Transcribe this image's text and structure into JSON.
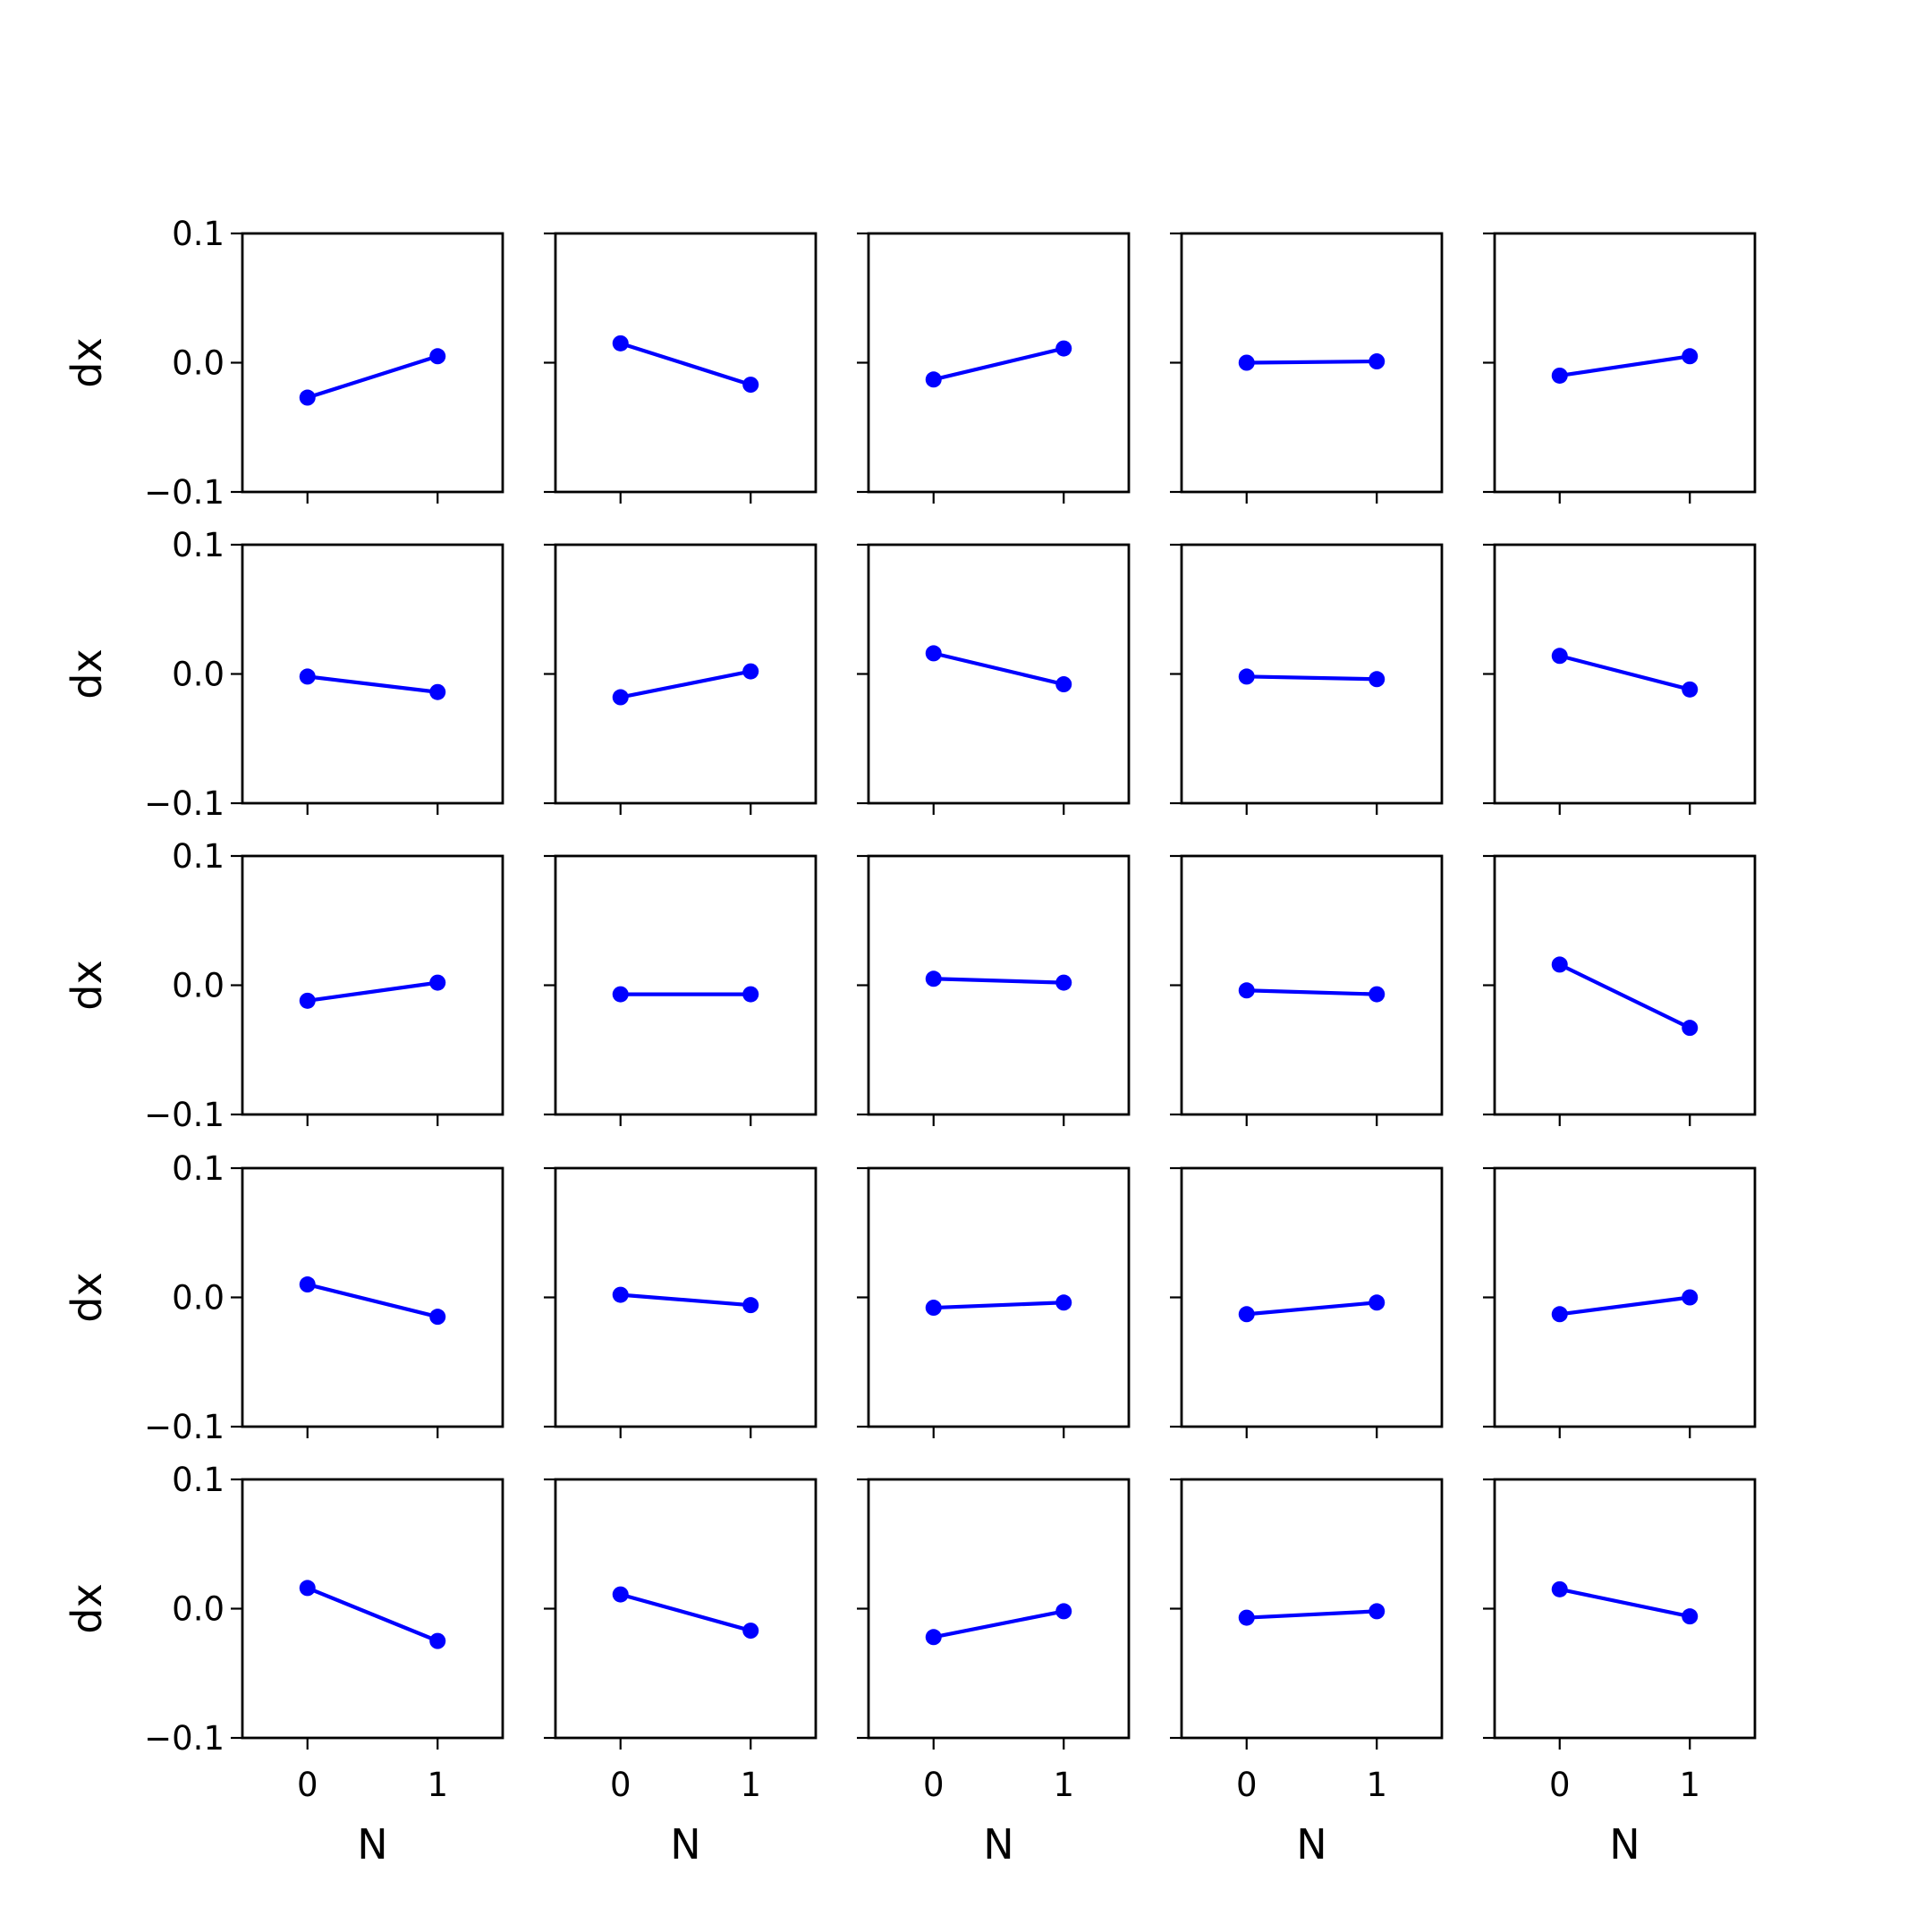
{
  "chart_data": {
    "type": "line",
    "layout": {
      "rows": 5,
      "cols": 5
    },
    "xlabel": "N",
    "ylabel": "dx",
    "xlim": [
      -0.5,
      1.5
    ],
    "ylim": [
      -0.1,
      0.1
    ],
    "xticks": [
      0,
      1
    ],
    "yticks": [
      -0.1,
      0.0,
      0.1
    ],
    "xtick_labels": [
      "0",
      "1"
    ],
    "ytick_labels": [
      "−0.1",
      "0.0",
      "0.1"
    ],
    "line_color": "#0000ff",
    "marker": "circle",
    "panels": [
      {
        "x": [
          0,
          1
        ],
        "y": [
          -0.027,
          0.005
        ]
      },
      {
        "x": [
          0,
          1
        ],
        "y": [
          0.015,
          -0.017
        ]
      },
      {
        "x": [
          0,
          1
        ],
        "y": [
          -0.013,
          0.011
        ]
      },
      {
        "x": [
          0,
          1
        ],
        "y": [
          0.0,
          0.001
        ]
      },
      {
        "x": [
          0,
          1
        ],
        "y": [
          -0.01,
          0.005
        ]
      },
      {
        "x": [
          0,
          1
        ],
        "y": [
          -0.002,
          -0.014
        ]
      },
      {
        "x": [
          0,
          1
        ],
        "y": [
          -0.018,
          0.002
        ]
      },
      {
        "x": [
          0,
          1
        ],
        "y": [
          0.016,
          -0.008
        ]
      },
      {
        "x": [
          0,
          1
        ],
        "y": [
          -0.002,
          -0.004
        ]
      },
      {
        "x": [
          0,
          1
        ],
        "y": [
          0.014,
          -0.012
        ]
      },
      {
        "x": [
          0,
          1
        ],
        "y": [
          -0.012,
          0.002
        ]
      },
      {
        "x": [
          0,
          1
        ],
        "y": [
          -0.007,
          -0.007
        ]
      },
      {
        "x": [
          0,
          1
        ],
        "y": [
          0.005,
          0.002
        ]
      },
      {
        "x": [
          0,
          1
        ],
        "y": [
          -0.004,
          -0.007
        ]
      },
      {
        "x": [
          0,
          1
        ],
        "y": [
          0.016,
          -0.033
        ]
      },
      {
        "x": [
          0,
          1
        ],
        "y": [
          0.01,
          -0.015
        ]
      },
      {
        "x": [
          0,
          1
        ],
        "y": [
          0.002,
          -0.006
        ]
      },
      {
        "x": [
          0,
          1
        ],
        "y": [
          -0.008,
          -0.004
        ]
      },
      {
        "x": [
          0,
          1
        ],
        "y": [
          -0.013,
          -0.004
        ]
      },
      {
        "x": [
          0,
          1
        ],
        "y": [
          -0.013,
          0.0
        ]
      },
      {
        "x": [
          0,
          1
        ],
        "y": [
          0.016,
          -0.025
        ]
      },
      {
        "x": [
          0,
          1
        ],
        "y": [
          0.011,
          -0.017
        ]
      },
      {
        "x": [
          0,
          1
        ],
        "y": [
          -0.022,
          -0.002
        ]
      },
      {
        "x": [
          0,
          1
        ],
        "y": [
          -0.007,
          -0.002
        ]
      },
      {
        "x": [
          0,
          1
        ],
        "y": [
          0.015,
          -0.006
        ]
      }
    ]
  }
}
